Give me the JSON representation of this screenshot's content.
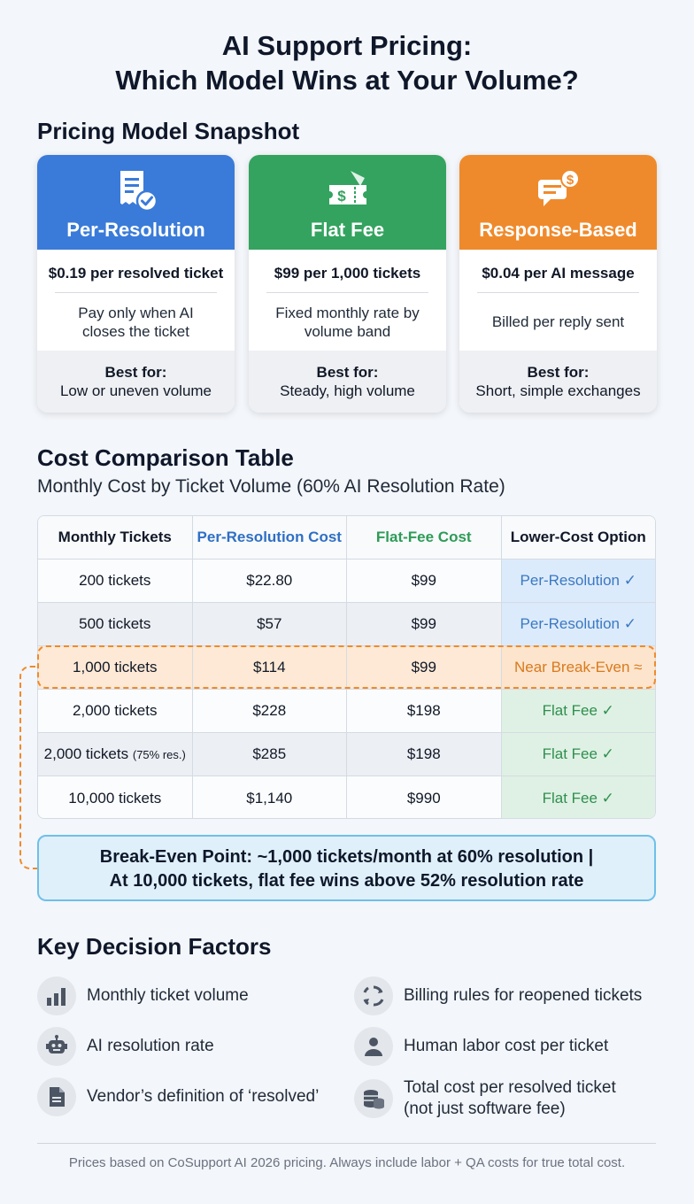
{
  "title": {
    "line1": "AI Support Pricing:",
    "line2": "Which Model Wins at Your Volume?"
  },
  "snapshot": {
    "heading": "Pricing Model Snapshot",
    "cards": [
      {
        "name": "Per-Resolution",
        "price": "$0.19 per resolved ticket",
        "desc": "Pay only when AI closes the ticket",
        "best_label": "Best for:",
        "best": "Low or uneven volume",
        "color": "#3a7bd9",
        "icon": "receipt-check-icon"
      },
      {
        "name": "Flat Fee",
        "price": "$99 per 1,000 tickets",
        "desc": "Fixed monthly rate by volume band",
        "best_label": "Best for:",
        "best": "Steady, high volume",
        "color": "#34a35f",
        "icon": "ticket-dollar-icon"
      },
      {
        "name": "Response-Based",
        "price": "$0.04 per AI message",
        "desc": "Billed per reply sent",
        "best_label": "Best for:",
        "best": "Short, simple exchanges",
        "color": "#ef8a2c",
        "icon": "chat-dollar-icon"
      }
    ]
  },
  "comparison": {
    "heading": "Cost Comparison Table",
    "subtitle": "Monthly Cost by Ticket Volume (60% AI Resolution Rate)",
    "columns": [
      "Monthly Tickets",
      "Per-Resolution Cost",
      "Flat-Fee Cost",
      "Lower-Cost Option"
    ],
    "rows": [
      {
        "tickets": "200 tickets",
        "note": "",
        "per_res": "$22.80",
        "flat": "$99",
        "option": "Per-Resolution ✓",
        "winner": "per-resolution"
      },
      {
        "tickets": "500 tickets",
        "note": "",
        "per_res": "$57",
        "flat": "$99",
        "option": "Per-Resolution ✓",
        "winner": "per-resolution"
      },
      {
        "tickets": "1,000 tickets",
        "note": "",
        "per_res": "$114",
        "flat": "$99",
        "option": "Near Break-Even ≈",
        "winner": "break-even"
      },
      {
        "tickets": "2,000 tickets",
        "note": "",
        "per_res": "$228",
        "flat": "$198",
        "option": "Flat Fee ✓",
        "winner": "flat-fee"
      },
      {
        "tickets": "2,000 tickets",
        "note": "(75% res.)",
        "per_res": "$285",
        "flat": "$198",
        "option": "Flat Fee ✓",
        "winner": "flat-fee"
      },
      {
        "tickets": "10,000 tickets",
        "note": "",
        "per_res": "$1,140",
        "flat": "$990",
        "option": "Flat Fee ✓",
        "winner": "flat-fee"
      }
    ],
    "callout_line1": "Break-Even Point: ~1,000 tickets/month at 60% resolution |",
    "callout_line2": "At 10,000 tickets, flat fee wins above 52% resolution rate",
    "colors": {
      "per_resolution": "#3b78c2",
      "flat_fee": "#2f8f4e",
      "break_even": "#ef8a2c"
    }
  },
  "factors": {
    "heading": "Key Decision Factors",
    "items": [
      {
        "text": "Monthly ticket volume",
        "text2": "",
        "icon": "bar-chart-icon"
      },
      {
        "text": "Billing rules for reopened tickets",
        "text2": "",
        "icon": "refresh-icon"
      },
      {
        "text": "AI resolution rate",
        "text2": "",
        "icon": "robot-icon"
      },
      {
        "text": "Human labor cost per ticket",
        "text2": "",
        "icon": "person-icon"
      },
      {
        "text": "Vendor’s definition of ‘resolved’",
        "text2": "",
        "icon": "document-icon"
      },
      {
        "text": "Total cost per resolved ticket",
        "text2": "(not just software fee)",
        "icon": "coins-icon"
      }
    ]
  },
  "footer": "Prices based on CoSupport AI 2026 pricing. Always include labor + QA costs for true total cost."
}
